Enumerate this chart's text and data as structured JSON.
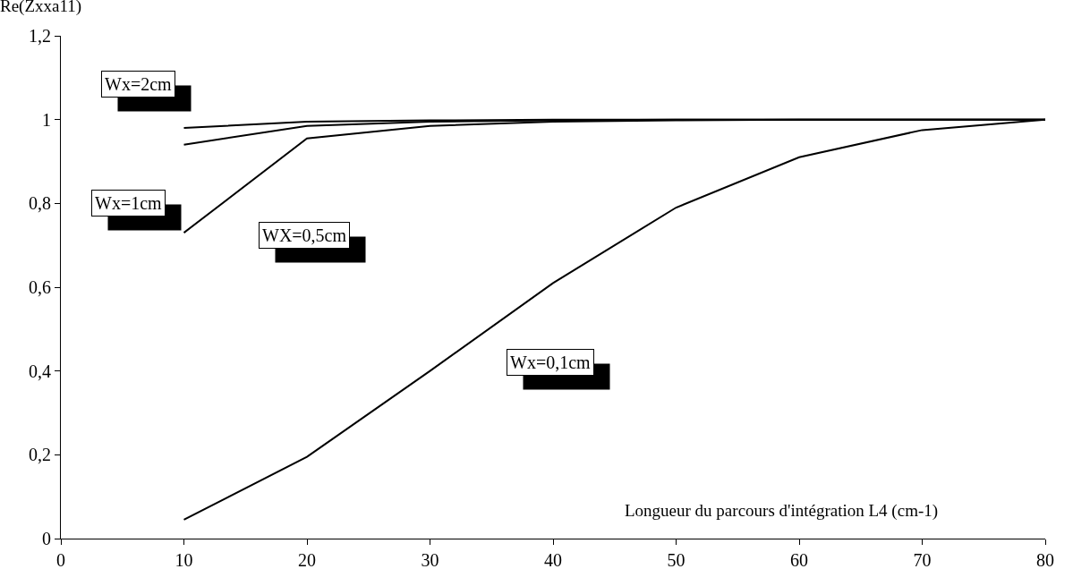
{
  "chart_data": {
    "type": "line",
    "ylabel": "Re(Zxxa11)",
    "xlabel": "Longueur du parcours d'intégration L4 (cm-1)",
    "x": [
      10,
      20,
      30,
      40,
      50,
      60,
      70,
      80
    ],
    "series": [
      {
        "name": "Wx=2cm",
        "color": "#000000",
        "values": [
          0.98,
          0.995,
          0.998,
          1,
          1,
          1,
          1,
          1
        ]
      },
      {
        "name": "Wx=1cm",
        "color": "#000000",
        "values": [
          0.94,
          0.985,
          0.995,
          0.998,
          1,
          1,
          1,
          1
        ]
      },
      {
        "name": "WX=0,5cm",
        "color": "#000000",
        "values": [
          0.73,
          0.955,
          0.985,
          0.995,
          0.998,
          1,
          1,
          1
        ]
      },
      {
        "name": "Wx=0,1cm",
        "color": "#000000",
        "values": [
          0.045,
          0.195,
          0.4,
          0.61,
          0.79,
          0.91,
          0.975,
          1
        ]
      }
    ],
    "xlim": [
      0,
      80
    ],
    "xticks": [
      0,
      10,
      20,
      30,
      40,
      50,
      60,
      70,
      80
    ],
    "ylim": [
      0,
      1.2
    ],
    "yticks": [
      0,
      {
        "value": 0.2,
        "label": "0,2"
      },
      {
        "value": 0.4,
        "label": "0,4"
      },
      {
        "value": 0.6,
        "label": "0,6"
      },
      {
        "value": 0.8,
        "label": "0,8"
      },
      1,
      {
        "value": 1.2,
        "label": "1,2"
      }
    ],
    "grid": false,
    "legend": false,
    "marker": "none",
    "line_style": "solid"
  }
}
